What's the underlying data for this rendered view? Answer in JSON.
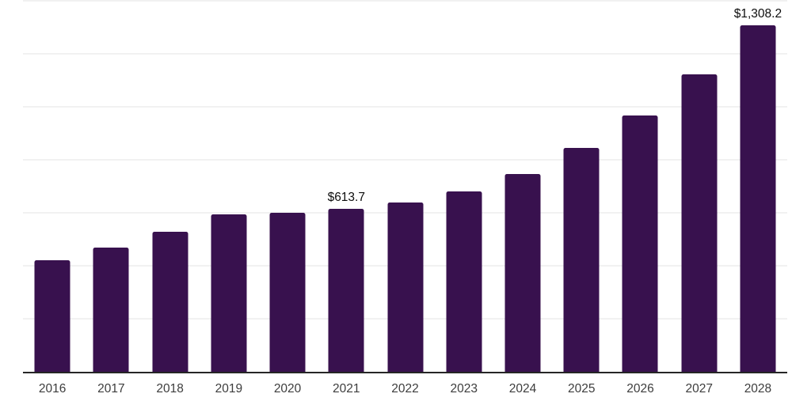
{
  "chart_data": {
    "type": "bar",
    "categories": [
      "2016",
      "2017",
      "2018",
      "2019",
      "2020",
      "2021",
      "2022",
      "2023",
      "2024",
      "2025",
      "2026",
      "2027",
      "2028"
    ],
    "values": [
      420.0,
      469.5,
      529.0,
      595.5,
      600.5,
      613.7,
      640.0,
      681.0,
      746.0,
      845.0,
      966.0,
      1122.0,
      1308.2
    ],
    "title": "",
    "xlabel": "",
    "ylabel": "",
    "ylim": [
      0,
      1400
    ],
    "gridline_step": 200,
    "grid": true,
    "legend": false,
    "y_axis_labels_visible": false,
    "annotations": [
      {
        "category": "2021",
        "text": "$613.7"
      },
      {
        "category": "2028",
        "text": "$1,308.2"
      }
    ],
    "colors": {
      "bar": "#38114e",
      "axis_line": "#262626",
      "gridline": "#f1f1f1",
      "tick_label": "#3d3d3d",
      "data_label": "#0d0d0d",
      "background": "#ffffff"
    }
  }
}
